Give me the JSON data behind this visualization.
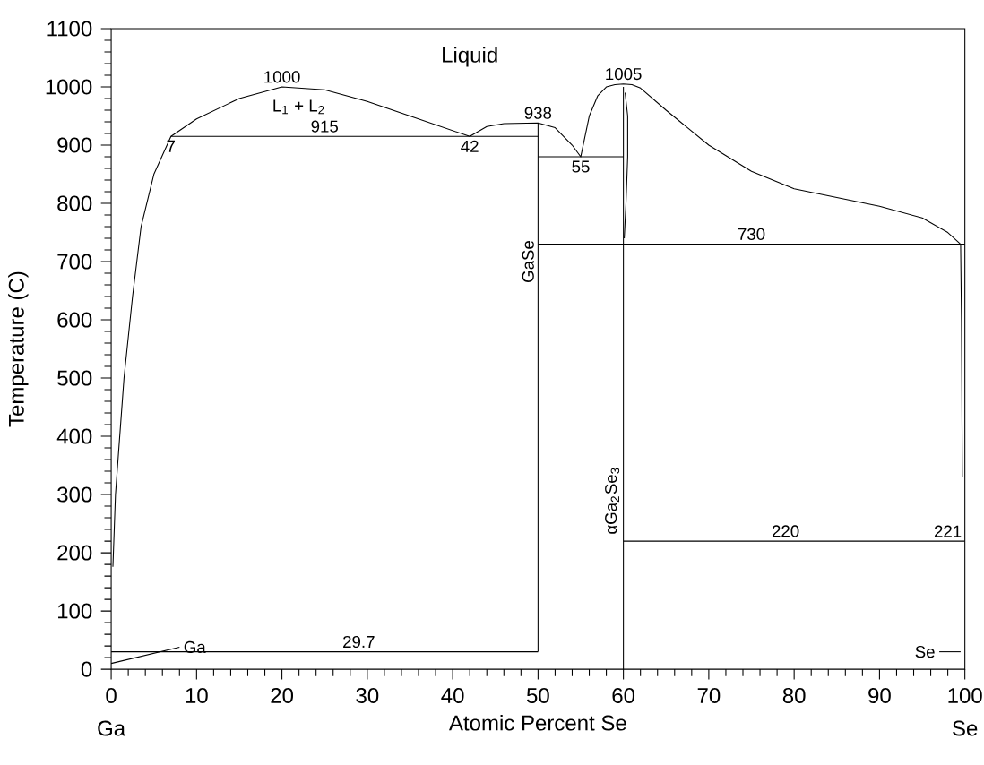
{
  "chart_data": {
    "type": "line",
    "xlabel": "Atomic Percent  Se",
    "ylabel": "Temperature (C)",
    "xlim": [
      0,
      100
    ],
    "ylim": [
      0,
      1100
    ],
    "xticks": [
      0,
      10,
      20,
      30,
      40,
      50,
      60,
      70,
      80,
      90,
      100
    ],
    "yticks": [
      0,
      100,
      200,
      300,
      400,
      500,
      600,
      700,
      800,
      900,
      1000,
      1100
    ],
    "grid": false,
    "marker": "none",
    "line_style": "solid",
    "series": [
      {
        "color": "#000000",
        "x": [
          0.2,
          0.5,
          1,
          1.5,
          2.5,
          3.5,
          5,
          7,
          10,
          15,
          20,
          25,
          30,
          35,
          42,
          44,
          46,
          50,
          52,
          54,
          55,
          56,
          57,
          58,
          59,
          60,
          61,
          62,
          65,
          70,
          75,
          80,
          85,
          90,
          95,
          98,
          99.5,
          99.6,
          99.7
        ],
        "values": [
          176,
          300,
          400,
          500,
          640,
          760,
          850,
          915,
          945,
          980,
          1000,
          995,
          975,
          950,
          915,
          932,
          937,
          938,
          930,
          900,
          880,
          950,
          985,
          1000,
          1004,
          1005,
          1004,
          998,
          960,
          900,
          855,
          825,
          810,
          795,
          775,
          750,
          730,
          600,
          330
        ]
      },
      {
        "color": "#000000",
        "x": [
          60.2,
          60.5,
          60.5,
          60.3,
          60.1
        ],
        "values": [
          990,
          950,
          880,
          800,
          740
        ]
      },
      {
        "color": "#000000",
        "x": [
          7,
          50
        ],
        "values": [
          915,
          915
        ]
      },
      {
        "color": "#000000",
        "x": [
          50,
          60
        ],
        "values": [
          880,
          880
        ]
      },
      {
        "color": "#000000",
        "x": [
          50,
          100
        ],
        "values": [
          730,
          730
        ]
      },
      {
        "color": "#000000",
        "x": [
          60,
          100
        ],
        "values": [
          220,
          220
        ]
      },
      {
        "color": "#000000",
        "x": [
          0,
          50
        ],
        "values": [
          30,
          30
        ]
      },
      {
        "color": "#000000",
        "x": [
          50,
          50
        ],
        "values": [
          30,
          938
        ]
      },
      {
        "color": "#000000",
        "x": [
          60,
          60
        ],
        "values": [
          0,
          1000
        ]
      },
      {
        "color": "#000000",
        "x": [
          0,
          8
        ],
        "values": [
          10,
          38
        ]
      },
      {
        "color": "#000000",
        "x": [
          97,
          99.5
        ],
        "values": [
          30,
          30
        ]
      }
    ],
    "annotations": [
      "Liquid",
      {
        "text": "1000",
        "x": 20,
        "y": 1000
      },
      "L$_{1}$ + L$_{2}$",
      {
        "text": "915",
        "x": 25,
        "y": 915
      },
      {
        "text": "7",
        "x": 7,
        "y": 915
      },
      {
        "text": "42",
        "x": 42,
        "y": 915
      },
      {
        "text": "938",
        "x": 50,
        "y": 938
      },
      {
        "text": "55",
        "x": 55,
        "y": 880
      },
      {
        "text": "1005",
        "x": 60,
        "y": 1005
      },
      {
        "text": "730",
        "x": 75,
        "y": 730
      },
      {
        "text": "220",
        "x": 79,
        "y": 220
      },
      {
        "text": "221",
        "x": 98,
        "y": 220
      },
      {
        "text": "29.7",
        "x": 29,
        "y": 30
      },
      {
        "text": "Ga",
        "x": 8,
        "y": 38
      },
      {
        "text": "Se",
        "x": 97,
        "y": 30
      },
      {
        "text": "GaSe",
        "x": 50,
        "y": 700
      },
      {
        "text": "αGa$_{2}$Se$_{3}$",
        "x": 60,
        "y": 290
      },
      "Ga",
      "Se"
    ]
  }
}
